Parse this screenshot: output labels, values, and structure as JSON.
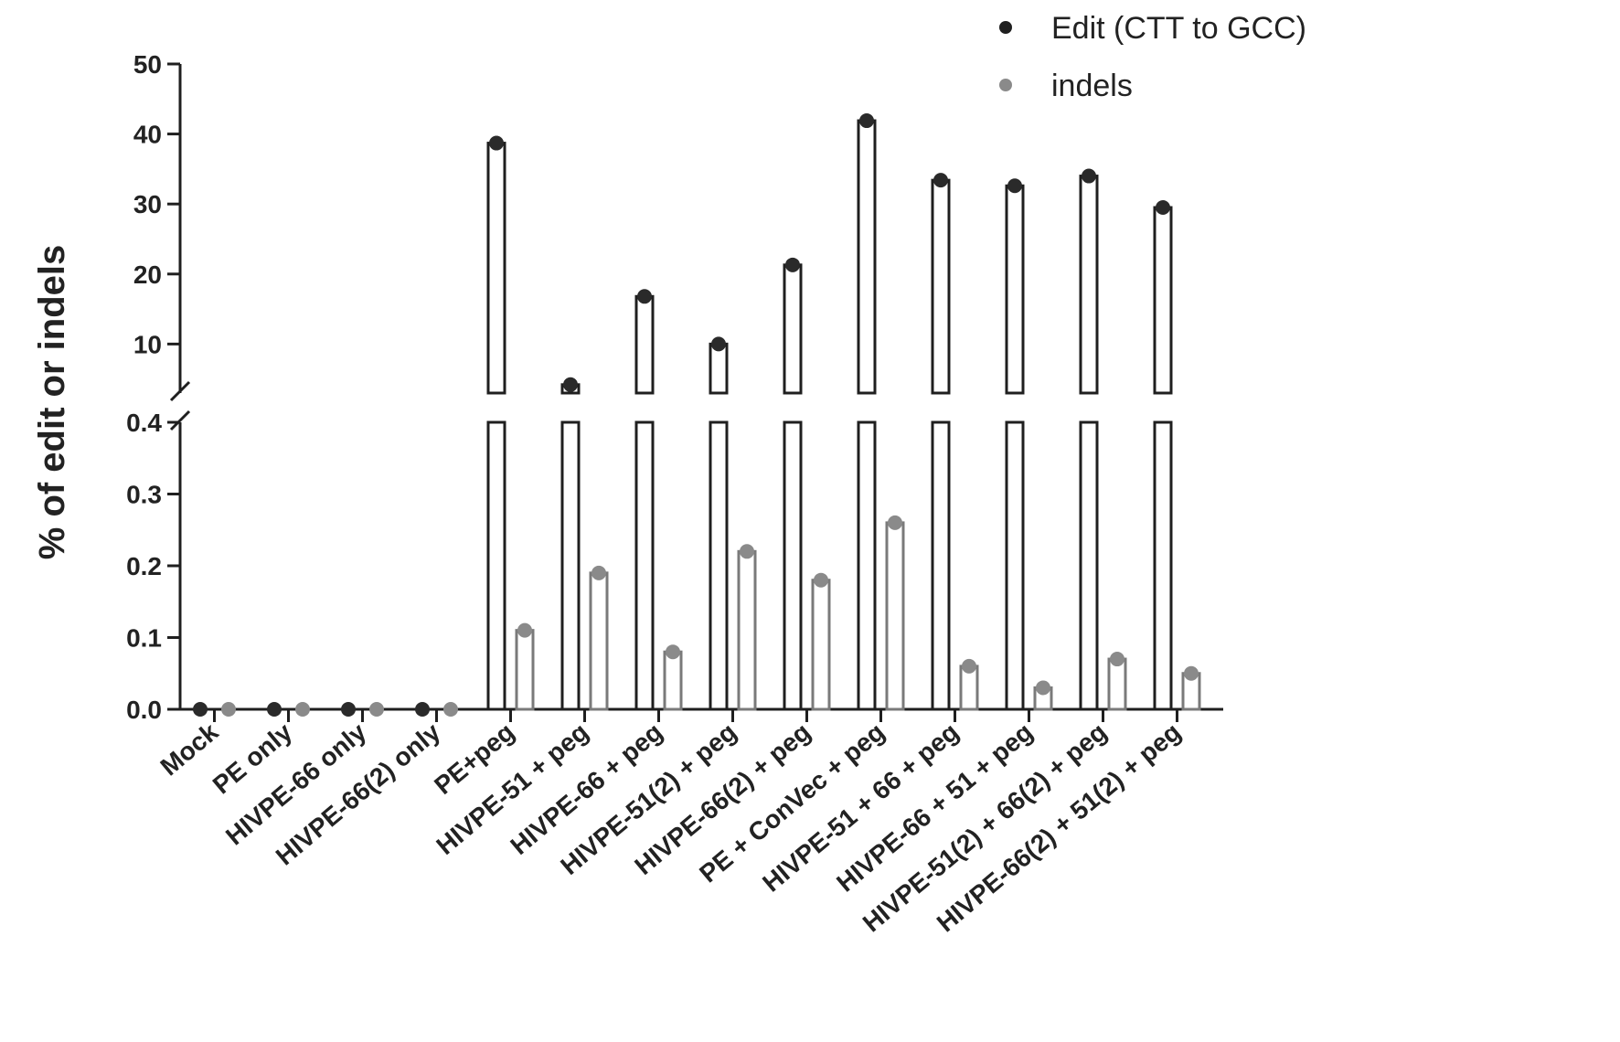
{
  "chart_data": {
    "type": "bar",
    "ylabel": "% of edit or indels",
    "axis_break": {
      "lower_range": [
        0,
        0.4
      ],
      "upper_range": [
        3,
        50
      ]
    },
    "lower_ticks": [
      "0.0",
      "0.1",
      "0.2",
      "0.3",
      "0.4"
    ],
    "upper_ticks": [
      "10",
      "20",
      "30",
      "40",
      "50"
    ],
    "legend_position": "top-right",
    "categories": [
      "Mock",
      "PE only",
      "HIVPE-66 only",
      "HIVPE-66(2) only",
      "PE+peg",
      "HIVPE-51 + peg",
      "HIVPE-66 + peg",
      "HIVPE-51(2) + peg",
      "HIVPE-66(2) + peg",
      "PE + ConVec + peg",
      "HIVPE-51 + 66 + peg",
      "HIVPE-66 + 51 + peg",
      "HIVPE-51(2) + 66(2) + peg",
      "HIVPE-66(2) + 51(2) + peg"
    ],
    "series": [
      {
        "name": "Edit (CTT to GCC)",
        "color": "#1f1f1f",
        "values": [
          0,
          0,
          0,
          0,
          38.7,
          4.2,
          16.8,
          10.0,
          21.3,
          41.9,
          33.4,
          32.6,
          34.0,
          29.5
        ]
      },
      {
        "name": "indels",
        "color": "#7a7a7a",
        "values": [
          0,
          0,
          0,
          0,
          0.11,
          0.19,
          0.08,
          0.22,
          0.18,
          0.26,
          0.06,
          0.03,
          0.07,
          0.05
        ]
      }
    ]
  }
}
